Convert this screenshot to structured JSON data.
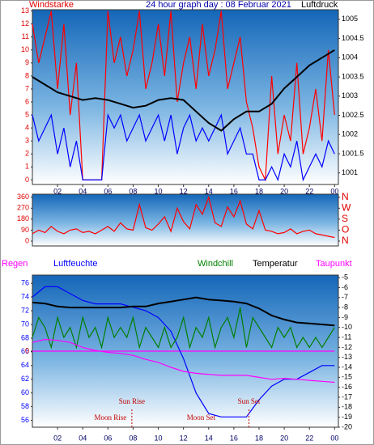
{
  "chart_data": [
    {
      "type": "line",
      "title": "24 hour graph day : 08 Februar 2021",
      "ylabel": "Windstarke",
      "y2label": "Luftdruck",
      "xlim": [
        0,
        24.3
      ],
      "xticks": [
        {
          "value": 2,
          "label": "02"
        },
        {
          "value": 4,
          "label": "04"
        },
        {
          "value": 6,
          "label": "06"
        },
        {
          "value": 8,
          "label": "08"
        },
        10,
        12,
        14,
        16,
        18,
        20,
        22,
        {
          "value": 24,
          "label": "00"
        }
      ],
      "ylim": [
        -0.35,
        13.1
      ],
      "yticks": [
        0,
        1,
        2,
        3,
        4,
        5,
        6,
        7,
        8,
        9,
        10,
        11,
        12,
        13
      ],
      "ytick_color": "#e00000",
      "y2lim": [
        1000.7,
        1005.25
      ],
      "y2ticks": [
        1001,
        1001.5,
        1002,
        1002.5,
        1003,
        1003.5,
        1004,
        1004.5,
        1005
      ],
      "y2tick_color": "#000000",
      "x": [
        0,
        1,
        2,
        3,
        4,
        5,
        6,
        7,
        8,
        9,
        10,
        11,
        12,
        13,
        14,
        15,
        16,
        17,
        18,
        19,
        20,
        21,
        22,
        23,
        24
      ],
      "series": [
        {
          "color": "#ff0000",
          "x": [
            0,
            0.5,
            1,
            1.5,
            2,
            2.5,
            3,
            3.5,
            4,
            4.5,
            5,
            5.5,
            6,
            6.5,
            7,
            7.5,
            8,
            8.5,
            9,
            9.5,
            10,
            10.5,
            11,
            11.5,
            12,
            12.5,
            13,
            13.5,
            14,
            14.5,
            15,
            15.5,
            16,
            16.5,
            17,
            17.5,
            18,
            18.5,
            19,
            19.5,
            20,
            20.5,
            21,
            21.5,
            22,
            22.5,
            23,
            23.5,
            24
          ],
          "values": [
            12,
            9,
            11,
            13,
            7,
            12,
            5,
            9,
            0,
            0,
            0,
            0,
            13,
            9,
            11,
            8,
            10,
            13,
            7,
            9,
            12,
            8,
            13,
            6,
            9,
            11,
            7,
            12,
            8,
            10,
            13,
            7,
            9,
            11,
            6,
            4,
            1,
            0,
            8,
            2,
            5,
            3,
            9,
            2,
            4,
            7,
            3,
            10,
            5
          ]
        },
        {
          "color": "#0000ff",
          "x": [
            0,
            0.5,
            1,
            1.5,
            2,
            2.5,
            3,
            3.5,
            4,
            4.5,
            5,
            5.5,
            6,
            6.5,
            7,
            7.5,
            8,
            8.5,
            9,
            9.5,
            10,
            10.5,
            11,
            11.5,
            12,
            12.5,
            13,
            13.5,
            14,
            14.5,
            15,
            15.5,
            16,
            16.5,
            17,
            17.5,
            18,
            18.5,
            19,
            19.5,
            20,
            20.5,
            21,
            21.5,
            22,
            22.5,
            23,
            23.5,
            24
          ],
          "values": [
            5,
            3,
            4,
            5,
            2,
            4,
            1,
            3,
            0,
            0,
            0,
            0,
            5,
            4,
            5,
            3,
            4,
            5,
            3,
            4,
            5,
            3,
            5,
            2,
            4,
            5,
            3,
            4,
            3,
            4,
            5,
            2,
            3,
            4,
            2,
            2,
            0,
            0,
            1,
            0,
            2,
            1,
            3,
            0,
            1,
            2,
            1,
            3,
            2
          ]
        },
        {
          "color": "#000000",
          "axis": "y2",
          "values": [
            1003.5,
            1003.3,
            1003.1,
            1003.0,
            1002.9,
            1002.95,
            1002.9,
            1002.8,
            1002.7,
            1002.75,
            1002.9,
            1002.95,
            1002.9,
            1002.6,
            1002.3,
            1002.1,
            1002.4,
            1002.6,
            1002.6,
            1002.8,
            1003.2,
            1003.5,
            1003.8,
            1004.0,
            1004.2
          ]
        }
      ]
    },
    {
      "type": "line",
      "xlim": [
        0,
        24.3
      ],
      "ylim": [
        -40,
        385
      ],
      "yticks": [
        0,
        90,
        180,
        270,
        360
      ],
      "ytick_color": "#e00000",
      "y2lim": [
        -40,
        385
      ],
      "y2ticks": [
        {
          "value": 360,
          "label": "N"
        },
        {
          "value": 270,
          "label": "W"
        },
        {
          "value": 180,
          "label": "S"
        },
        {
          "value": 90,
          "label": "O"
        },
        {
          "value": 0,
          "label": "N"
        }
      ],
      "y2tick_color": "#e00000",
      "x": [
        0,
        0.5,
        1,
        1.5,
        2,
        2.5,
        3,
        3.5,
        4,
        4.5,
        5,
        5.5,
        6,
        6.5,
        7,
        7.5,
        8,
        8.5,
        9,
        9.5,
        10,
        10.5,
        11,
        11.5,
        12,
        12.5,
        13,
        13.5,
        14,
        14.5,
        15,
        15.5,
        16,
        16.5,
        17,
        17.5,
        18,
        18.5,
        19,
        19.5,
        20,
        20.5,
        21,
        21.5,
        22,
        22.5,
        23,
        23.5,
        24
      ],
      "series": [
        {
          "color": "#ff0000",
          "values": [
            60,
            90,
            70,
            120,
            80,
            60,
            90,
            100,
            70,
            80,
            60,
            90,
            120,
            80,
            150,
            100,
            90,
            300,
            110,
            90,
            140,
            200,
            80,
            270,
            160,
            100,
            300,
            220,
            360,
            150,
            120,
            280,
            200,
            330,
            140,
            100,
            250,
            90,
            80,
            60,
            70,
            100,
            60,
            80,
            90,
            60,
            50,
            40,
            30
          ]
        }
      ]
    },
    {
      "type": "line",
      "xlim": [
        0,
        24.3
      ],
      "xticks": [
        {
          "value": 2,
          "label": "02"
        },
        {
          "value": 4,
          "label": "04"
        },
        {
          "value": 6,
          "label": "06"
        },
        {
          "value": 8,
          "label": "08"
        },
        10,
        12,
        14,
        16,
        18,
        20,
        22,
        {
          "value": 24,
          "label": "00"
        }
      ],
      "ylim": [
        55,
        77.2
      ],
      "yticks": [
        56,
        58,
        60,
        62,
        64,
        66,
        68,
        70,
        72,
        74,
        76
      ],
      "ytick_color": "#0000ff",
      "y2lim": [
        -20,
        -4.75
      ],
      "y2ticks": [
        -5,
        -6,
        -7,
        -8,
        -9,
        -10,
        -11,
        -12,
        -13,
        -14,
        -15,
        -16,
        -17,
        -18,
        -19,
        -20
      ],
      "y2tick_color": "#000000",
      "y3lim": [
        -1,
        1
      ],
      "y3ticks": [
        0
      ],
      "y3tick_color": "#e00000",
      "x": [
        0,
        1,
        2,
        3,
        4,
        5,
        6,
        7,
        8,
        9,
        10,
        11,
        12,
        13,
        14,
        15,
        16,
        17,
        18,
        19,
        20,
        21,
        22,
        23,
        24
      ],
      "series": [
        {
          "name": "Regen",
          "color": "#ff00ff",
          "axis": "y3",
          "x": [
            0,
            24
          ],
          "values": [
            0,
            0
          ]
        },
        {
          "name": "Luftfeuchte",
          "color": "#0000ff",
          "values": [
            74,
            75.5,
            75.5,
            74.5,
            73.5,
            73,
            73,
            73,
            72.5,
            72,
            71,
            69,
            65,
            60,
            57,
            56.5,
            56.5,
            56.5,
            59,
            61,
            62,
            62,
            63,
            64,
            64
          ]
        },
        {
          "name": "Windchill",
          "color": "#008000",
          "axis": "y2",
          "x": [
            0,
            0.5,
            1,
            1.5,
            2,
            2.5,
            3,
            3.5,
            4,
            4.5,
            5,
            5.5,
            6,
            6.5,
            7,
            7.5,
            8,
            8.5,
            9,
            9.5,
            10,
            10.5,
            11,
            11.5,
            12,
            12.5,
            13,
            13.5,
            14,
            14.5,
            15,
            15.5,
            16,
            16.5,
            17,
            17.5,
            18,
            18.5,
            19,
            19.5,
            20,
            20.5,
            21,
            21.5,
            22,
            22.5,
            23,
            23.5,
            24
          ],
          "values": [
            -11,
            -9,
            -10,
            -12,
            -9,
            -11,
            -10,
            -12,
            -9,
            -11,
            -10,
            -12,
            -9,
            -11,
            -10,
            -11,
            -9,
            -12,
            -10,
            -11,
            -12,
            -10,
            -12,
            -11,
            -9,
            -12,
            -10,
            -11,
            -9,
            -12,
            -10,
            -9,
            -11,
            -8,
            -12,
            -9,
            -10,
            -11,
            -12,
            -10,
            -11,
            -10,
            -12,
            -11,
            -12,
            -11,
            -12,
            -11,
            -10
          ]
        },
        {
          "name": "Temperatur",
          "color": "#000000",
          "axis": "y2",
          "values": [
            -7.5,
            -7.6,
            -7.9,
            -8.0,
            -8.0,
            -8.0,
            -8.0,
            -8.0,
            -7.9,
            -7.9,
            -7.6,
            -7.4,
            -7.2,
            -7.0,
            -7.2,
            -7.3,
            -7.4,
            -7.6,
            -8.1,
            -8.8,
            -9.2,
            -9.5,
            -9.6,
            -9.7,
            -9.8
          ]
        },
        {
          "name": "Taupunkt",
          "color": "#ff00ff",
          "axis": "y2",
          "values": [
            -11.5,
            -11.2,
            -11.3,
            -11.5,
            -12,
            -12.3,
            -12.5,
            -12.6,
            -12.8,
            -13.2,
            -13.5,
            -14,
            -14.4,
            -14.6,
            -14.7,
            -14.8,
            -14.8,
            -14.8,
            -15.0,
            -15.2,
            -15.1,
            -15.2,
            -15.3,
            -15.4,
            -15.5
          ]
        }
      ],
      "annotations": [
        {
          "text": "Sun Rise",
          "x": 7.9
        },
        {
          "text": "Sun Set",
          "x": 17.2
        },
        {
          "text": "Moon Rise",
          "x": 6.2
        },
        {
          "text": "Moon Set",
          "x": 13.4
        }
      ]
    }
  ]
}
